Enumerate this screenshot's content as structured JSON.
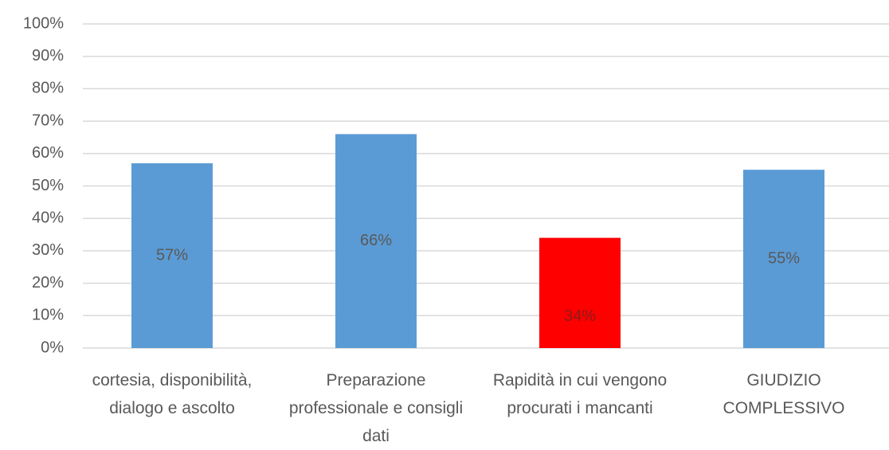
{
  "chart_data": {
    "type": "bar",
    "categories": [
      "cortesia, disponibilità, dialogo e ascolto",
      "Preparazione professionale e consigli dati",
      "Rapidità in cui vengono procurati i mancanti",
      "GIUDIZIO COMPLESSIVO"
    ],
    "values": [
      57,
      66,
      34,
      55
    ],
    "value_labels": [
      "57%",
      "66%",
      "34%",
      "55%"
    ],
    "colors": [
      "#5b9bd5",
      "#5b9bd5",
      "#ff0000",
      "#5b9bd5"
    ],
    "ylim": [
      0,
      100
    ],
    "yticks": [
      {
        "value": 0,
        "label": "0%"
      },
      {
        "value": 10,
        "label": "10%"
      },
      {
        "value": 20,
        "label": "20%"
      },
      {
        "value": 30,
        "label": "30%"
      },
      {
        "value": 40,
        "label": "40%"
      },
      {
        "value": 50,
        "label": "50%"
      },
      {
        "value": 60,
        "label": "60%"
      },
      {
        "value": 70,
        "label": "70%"
      },
      {
        "value": 80,
        "label": "80%"
      },
      {
        "value": 90,
        "label": "90%"
      },
      {
        "value": 100,
        "label": "100%"
      }
    ],
    "grid": true
  }
}
